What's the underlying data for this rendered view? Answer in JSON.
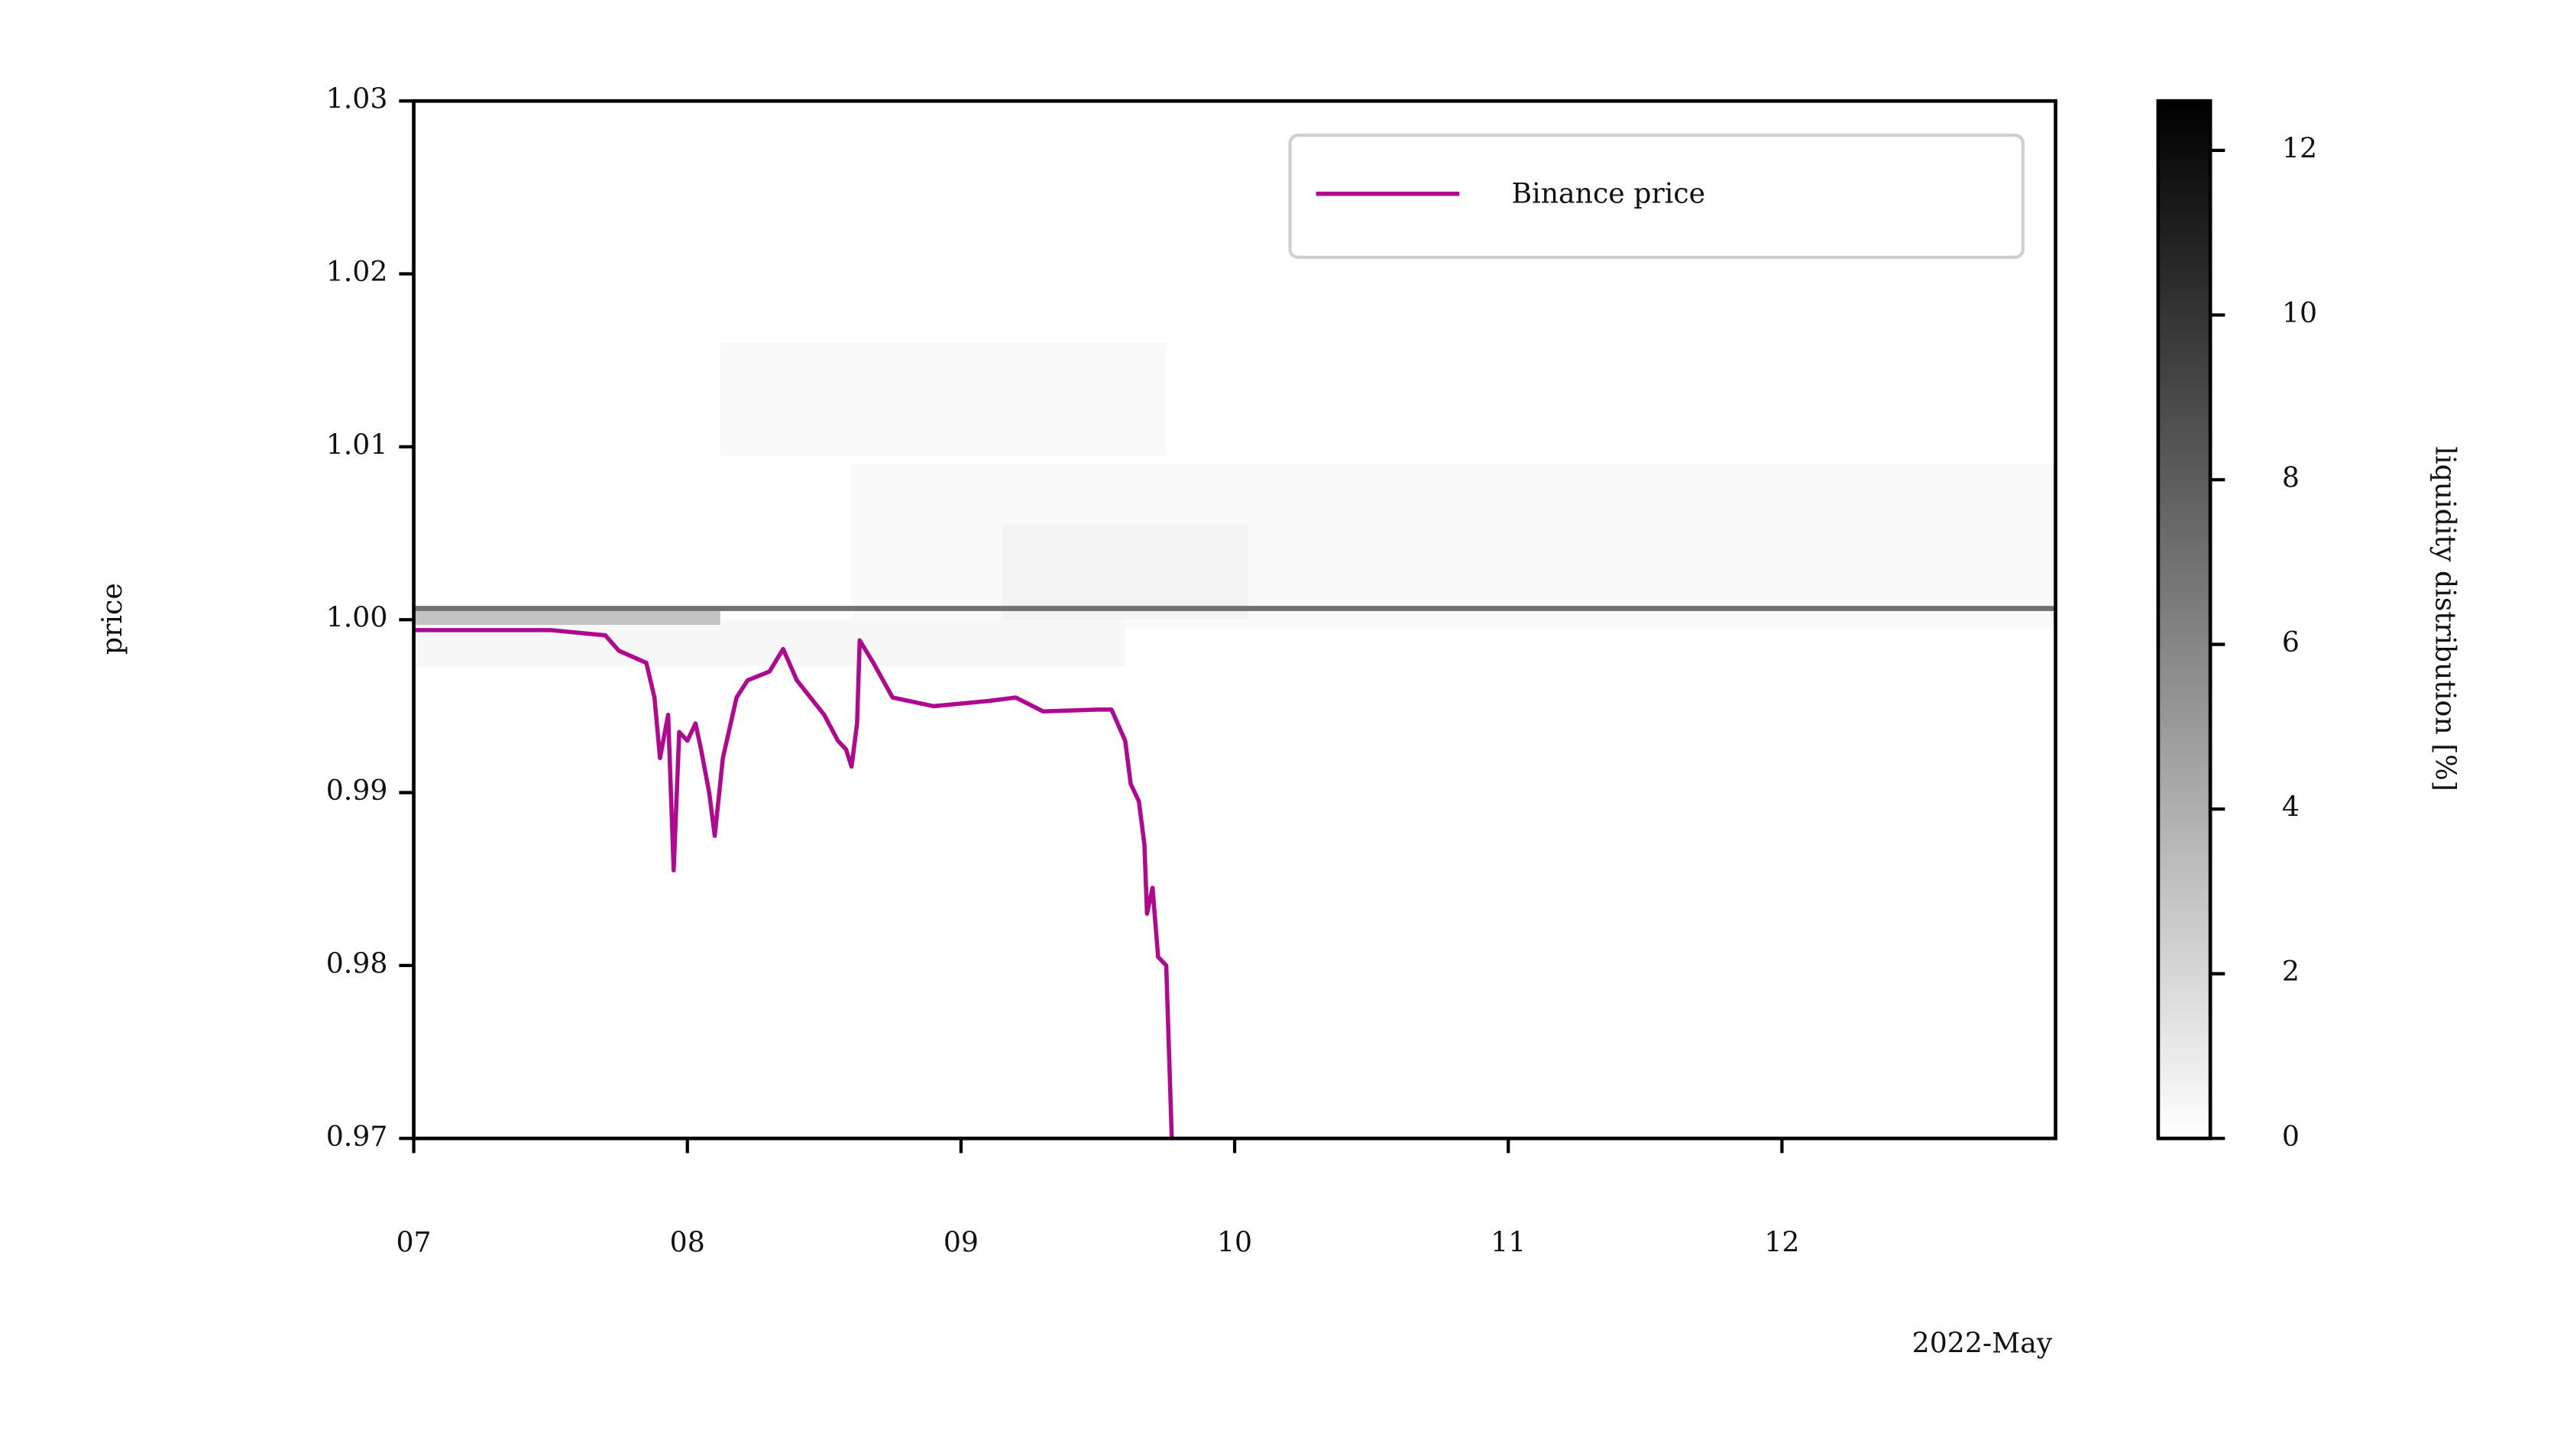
{
  "chart_data": {
    "type": "line",
    "x_label": "2022-May",
    "y_label": "price",
    "xlim": [
      7,
      13
    ],
    "xticks": [
      {
        "value": 7,
        "label": "07"
      },
      {
        "value": 8,
        "label": "08"
      },
      {
        "value": 9,
        "label": "09"
      },
      10,
      11,
      12
    ],
    "ylim": [
      0.97,
      1.03
    ],
    "yticks": [
      {
        "value": 0.97,
        "label": "0.97"
      },
      {
        "value": 0.98,
        "label": "0.98"
      },
      {
        "value": 0.99,
        "label": "0.99"
      },
      {
        "value": 1.0,
        "label": "1.00"
      },
      {
        "value": 1.01,
        "label": "1.01"
      },
      {
        "value": 1.02,
        "label": "1.02"
      },
      {
        "value": 1.03,
        "label": "1.03"
      }
    ],
    "legend": "upper right",
    "series": [
      {
        "name": "Binance price",
        "color": "#b0088f",
        "x": [
          7.0,
          7.5,
          7.7,
          7.75,
          7.85,
          7.88,
          7.9,
          7.93,
          7.95,
          7.97,
          8.0,
          8.03,
          8.05,
          8.08,
          8.1,
          8.13,
          8.18,
          8.22,
          8.3,
          8.35,
          8.4,
          8.5,
          8.55,
          8.58,
          8.6,
          8.62,
          8.63,
          8.68,
          8.75,
          8.9,
          9.1,
          9.2,
          9.3,
          9.5,
          9.55,
          9.6,
          9.62,
          9.65,
          9.67,
          9.68,
          9.7,
          9.72,
          9.75,
          9.77
        ],
        "values": [
          0.9994,
          0.9994,
          0.9991,
          0.9982,
          0.9975,
          0.9955,
          0.992,
          0.9945,
          0.9855,
          0.9935,
          0.993,
          0.994,
          0.9925,
          0.99,
          0.9875,
          0.992,
          0.9955,
          0.9965,
          0.997,
          0.9983,
          0.9965,
          0.9945,
          0.993,
          0.9925,
          0.9915,
          0.994,
          0.9988,
          0.9975,
          0.9955,
          0.995,
          0.9953,
          0.9955,
          0.9947,
          0.9948,
          0.9948,
          0.993,
          0.9905,
          0.9895,
          0.987,
          0.983,
          0.9845,
          0.9805,
          0.98,
          0.97
        ]
      }
    ],
    "heatmap": {
      "cells": [
        {
          "x": [
            8.12,
            9.75
          ],
          "y": [
            1.0095,
            1.016
          ],
          "value": 0.3
        },
        {
          "x": [
            8.6,
            13.0
          ],
          "y": [
            0.9995,
            1.009
          ],
          "value": 0.3
        },
        {
          "x": [
            9.15,
            10.05
          ],
          "y": [
            1.0,
            1.0055
          ],
          "value": 0.6
        },
        {
          "x": [
            7.0,
            9.6
          ],
          "y": [
            0.9973,
            1.0
          ],
          "value": 0.4
        },
        {
          "x": [
            7.0,
            8.12
          ],
          "y": [
            0.9997,
            1.0005
          ],
          "value": 3
        },
        {
          "x": [
            7.0,
            13.0
          ],
          "y": [
            1.0005,
            1.0008
          ],
          "value": 7
        }
      ],
      "colorbar_label": "liquidity distribution [%]",
      "clim": [
        0,
        12.6
      ],
      "cticks": [
        0,
        2,
        4,
        6,
        8,
        10,
        12
      ]
    }
  }
}
